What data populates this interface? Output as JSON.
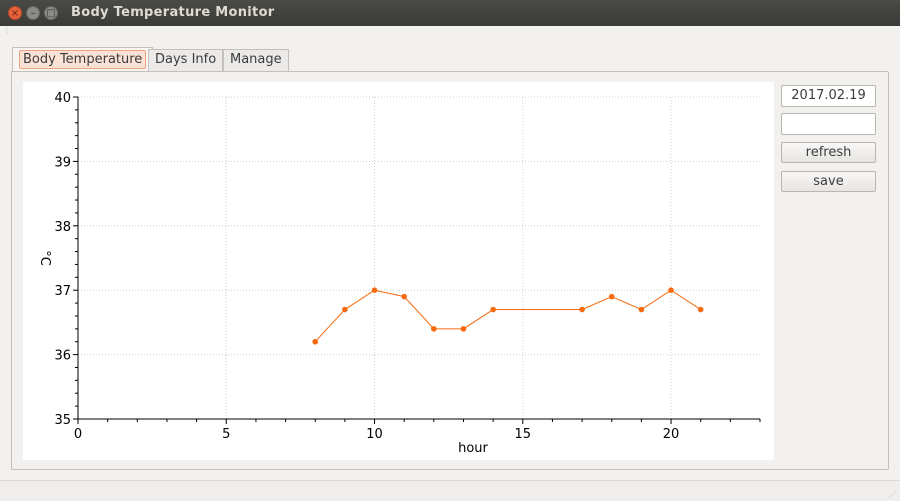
{
  "window": {
    "title": "Body Temperature Monitor",
    "controls": {
      "close": "×",
      "minimize": "–",
      "maximize": "□"
    }
  },
  "tabs": [
    {
      "label": "Body Temperature",
      "active": true
    },
    {
      "label": "Days Info",
      "active": false
    },
    {
      "label": "Manage",
      "active": false
    }
  ],
  "sidebar": {
    "date": "2017.02.19",
    "input_value": "",
    "refresh_label": "refresh",
    "save_label": "save"
  },
  "colors": {
    "series": "#f56a0f",
    "grid": "#cfcfcf",
    "axis": "#000000"
  },
  "chart_data": {
    "type": "line",
    "title": "",
    "xlabel": "hour",
    "ylabel": "°C",
    "xlim": [
      0,
      23
    ],
    "ylim": [
      35,
      40
    ],
    "xticks": [
      0,
      5,
      10,
      15,
      20
    ],
    "yticks": [
      35,
      36,
      37,
      38,
      39,
      40
    ],
    "grid": true,
    "series": [
      {
        "x": [
          8,
          9,
          10,
          11,
          12,
          13,
          14,
          17,
          18,
          19,
          20,
          21
        ],
        "y": [
          36.2,
          36.7,
          37.0,
          36.9,
          36.4,
          36.4,
          36.7,
          36.7,
          36.9,
          36.7,
          37.0,
          36.7
        ]
      }
    ]
  }
}
